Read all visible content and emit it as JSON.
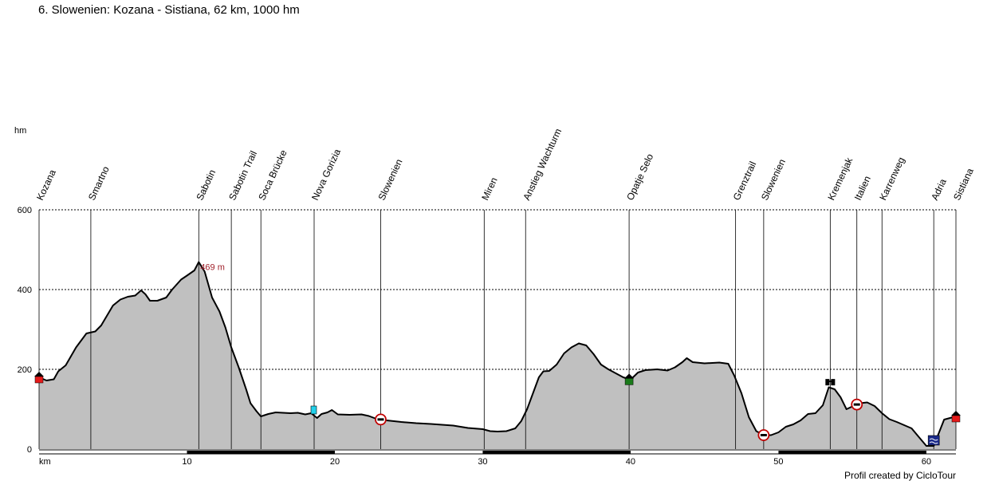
{
  "title": "6. Slowenien: Kozana - Sistiana, 62 km, 1000 hm",
  "credit": "Profil created by CicloTour",
  "chart_data": {
    "type": "area",
    "title": "6. Slowenien: Kozana - Sistiana, 62 km, 1000 hm",
    "xlabel": "km",
    "ylabel": "hm",
    "xlim": [
      0,
      62
    ],
    "ylim": [
      0,
      600
    ],
    "x_ticks": [
      10,
      20,
      30,
      40,
      50,
      60
    ],
    "x_tick_labels": [
      "10",
      "20",
      "30",
      "40",
      "50",
      "60"
    ],
    "y_ticks": [
      0,
      200,
      400,
      600
    ],
    "y_tick_labels": [
      "0",
      "200",
      "400",
      "600"
    ],
    "grid": "horizontal dashed",
    "fill_color": "#c0c0c0",
    "line_color": "#000000",
    "max_label": "469 m",
    "max_point": {
      "x": 10.8,
      "y": 469
    },
    "profile": [
      [
        0,
        180
      ],
      [
        0.5,
        172
      ],
      [
        1.0,
        175
      ],
      [
        1.3,
        195
      ],
      [
        1.8,
        210
      ],
      [
        2.5,
        255
      ],
      [
        3.2,
        290
      ],
      [
        3.8,
        295
      ],
      [
        4.2,
        310
      ],
      [
        4.6,
        335
      ],
      [
        5.0,
        360
      ],
      [
        5.5,
        375
      ],
      [
        6.0,
        382
      ],
      [
        6.5,
        385
      ],
      [
        6.9,
        398
      ],
      [
        7.2,
        388
      ],
      [
        7.5,
        372
      ],
      [
        8.0,
        372
      ],
      [
        8.6,
        380
      ],
      [
        9.0,
        400
      ],
      [
        9.6,
        425
      ],
      [
        10.0,
        435
      ],
      [
        10.5,
        448
      ],
      [
        10.8,
        469
      ],
      [
        11.2,
        445
      ],
      [
        11.7,
        380
      ],
      [
        12.2,
        345
      ],
      [
        12.6,
        305
      ],
      [
        13.0,
        255
      ],
      [
        13.5,
        205
      ],
      [
        14.0,
        150
      ],
      [
        14.3,
        115
      ],
      [
        14.7,
        95
      ],
      [
        15.0,
        82
      ],
      [
        15.5,
        88
      ],
      [
        16.0,
        92
      ],
      [
        17.0,
        90
      ],
      [
        17.5,
        91
      ],
      [
        18.0,
        87
      ],
      [
        18.4,
        90
      ],
      [
        18.8,
        78
      ],
      [
        19.1,
        88
      ],
      [
        19.5,
        92
      ],
      [
        19.8,
        98
      ],
      [
        20.2,
        87
      ],
      [
        21.0,
        86
      ],
      [
        21.8,
        87
      ],
      [
        22.3,
        83
      ],
      [
        22.8,
        76
      ],
      [
        23.5,
        72
      ],
      [
        24.5,
        68
      ],
      [
        25.5,
        65
      ],
      [
        26.5,
        63
      ],
      [
        28.0,
        59
      ],
      [
        29.0,
        53
      ],
      [
        30.0,
        50
      ],
      [
        30.5,
        45
      ],
      [
        31.0,
        44
      ],
      [
        31.6,
        45
      ],
      [
        32.2,
        52
      ],
      [
        32.6,
        70
      ],
      [
        33.0,
        100
      ],
      [
        33.4,
        140
      ],
      [
        33.8,
        180
      ],
      [
        34.1,
        195
      ],
      [
        34.5,
        196
      ],
      [
        35.0,
        212
      ],
      [
        35.5,
        240
      ],
      [
        36.0,
        255
      ],
      [
        36.5,
        265
      ],
      [
        37.0,
        260
      ],
      [
        37.5,
        238
      ],
      [
        38.0,
        212
      ],
      [
        38.5,
        200
      ],
      [
        39.0,
        190
      ],
      [
        39.5,
        180
      ],
      [
        40.0,
        174
      ],
      [
        40.5,
        192
      ],
      [
        41.0,
        198
      ],
      [
        41.8,
        200
      ],
      [
        42.5,
        197
      ],
      [
        43.0,
        205
      ],
      [
        43.5,
        218
      ],
      [
        43.8,
        228
      ],
      [
        44.2,
        218
      ],
      [
        45.0,
        215
      ],
      [
        46.0,
        217
      ],
      [
        46.6,
        214
      ],
      [
        47.0,
        185
      ],
      [
        47.5,
        140
      ],
      [
        48.0,
        80
      ],
      [
        48.5,
        45
      ],
      [
        49.0,
        35
      ],
      [
        49.5,
        35
      ],
      [
        50.0,
        42
      ],
      [
        50.5,
        56
      ],
      [
        51.0,
        62
      ],
      [
        51.5,
        72
      ],
      [
        52.0,
        88
      ],
      [
        52.5,
        90
      ],
      [
        53.0,
        110
      ],
      [
        53.4,
        155
      ],
      [
        53.8,
        150
      ],
      [
        54.2,
        130
      ],
      [
        54.6,
        100
      ],
      [
        55.0,
        107
      ],
      [
        55.5,
        115
      ],
      [
        56.0,
        117
      ],
      [
        56.5,
        108
      ],
      [
        57.0,
        90
      ],
      [
        57.5,
        75
      ],
      [
        58.0,
        68
      ],
      [
        58.5,
        60
      ],
      [
        59.0,
        52
      ],
      [
        59.5,
        30
      ],
      [
        60.0,
        8
      ],
      [
        60.5,
        8
      ],
      [
        61.2,
        74
      ],
      [
        61.6,
        78
      ],
      [
        62.0,
        82
      ]
    ],
    "waypoints": [
      {
        "km": 0.0,
        "label": "Kozana",
        "marker": "house-red"
      },
      {
        "km": 3.5,
        "label": "Smartno",
        "marker": ""
      },
      {
        "km": 10.8,
        "label": "Sabotin",
        "marker": ""
      },
      {
        "km": 13.0,
        "label": "Sabotin Trail",
        "marker": ""
      },
      {
        "km": 15.0,
        "label": "Soca Brücke",
        "marker": ""
      },
      {
        "km": 18.6,
        "label": "Nova Gorizia",
        "marker": "drink-cyan"
      },
      {
        "km": 23.1,
        "label": "Slowenien",
        "marker": "border-sign"
      },
      {
        "km": 30.1,
        "label": "Miren",
        "marker": ""
      },
      {
        "km": 32.9,
        "label": "Anstieg Wachturm",
        "marker": ""
      },
      {
        "km": 39.9,
        "label": "Opatje Selo",
        "marker": "house-green"
      },
      {
        "km": 47.1,
        "label": "Grenztrail",
        "marker": ""
      },
      {
        "km": 49.0,
        "label": "Slowenien",
        "marker": "border-sign"
      },
      {
        "km": 53.5,
        "label": "Kremenjak",
        "marker": "binoculars"
      },
      {
        "km": 55.3,
        "label": "Italien",
        "marker": "border-sign"
      },
      {
        "km": 57.0,
        "label": "Karrenweg",
        "marker": ""
      },
      {
        "km": 60.5,
        "label": "Adria",
        "marker": "water-blue"
      },
      {
        "km": 62.0,
        "label": "Sistiana",
        "marker": "house-red"
      }
    ]
  }
}
